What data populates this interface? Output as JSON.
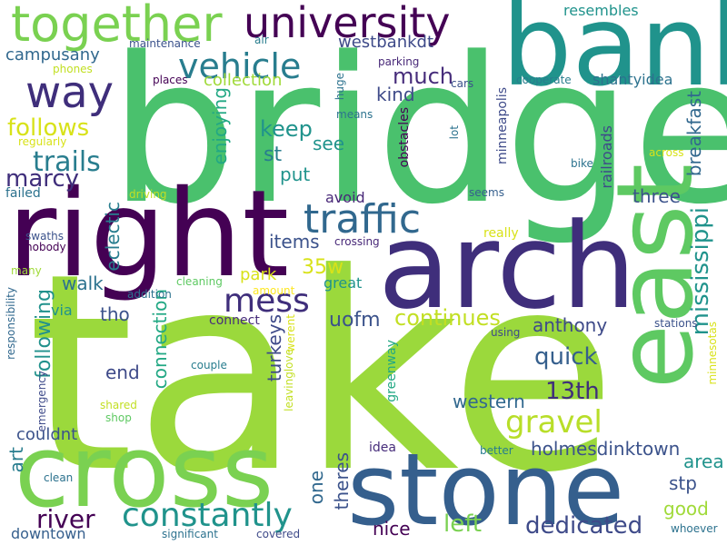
{
  "words": [
    {
      "text": "take"
    },
    {
      "text": "bridge"
    },
    {
      "text": "right"
    },
    {
      "text": "arch"
    },
    {
      "text": "bank"
    },
    {
      "text": "east"
    },
    {
      "text": "cross"
    },
    {
      "text": "stone"
    },
    {
      "text": "together"
    },
    {
      "text": "university"
    },
    {
      "text": "traffic"
    },
    {
      "text": "way"
    },
    {
      "text": "vehicle"
    },
    {
      "text": "mess"
    },
    {
      "text": "gravel"
    },
    {
      "text": "constantly"
    },
    {
      "text": "trails"
    },
    {
      "text": "follows"
    },
    {
      "text": "marcy"
    },
    {
      "text": "river"
    },
    {
      "text": "continues"
    },
    {
      "text": "quick"
    },
    {
      "text": "13th"
    },
    {
      "text": "dedicated"
    },
    {
      "text": "left"
    },
    {
      "text": "mississippi"
    },
    {
      "text": "much"
    },
    {
      "text": "campusany"
    },
    {
      "text": "westbankdt"
    },
    {
      "text": "collection"
    },
    {
      "text": "keep"
    },
    {
      "text": "anthony"
    },
    {
      "text": "holmesdinktown"
    },
    {
      "text": "uofm"
    },
    {
      "text": "35w"
    },
    {
      "text": "following"
    },
    {
      "text": "walk"
    },
    {
      "text": "western"
    },
    {
      "text": "connection"
    },
    {
      "text": "turkeys"
    },
    {
      "text": "items"
    },
    {
      "text": "enjoying"
    },
    {
      "text": "eclectic"
    },
    {
      "text": "see"
    },
    {
      "text": "st"
    },
    {
      "text": "put"
    },
    {
      "text": "kind"
    },
    {
      "text": "three"
    },
    {
      "text": "breakfast"
    },
    {
      "text": "railroads"
    },
    {
      "text": "avoid"
    },
    {
      "text": "park"
    },
    {
      "text": "tho"
    },
    {
      "text": "end"
    },
    {
      "text": "area"
    },
    {
      "text": "stp"
    },
    {
      "text": "good"
    },
    {
      "text": "one"
    },
    {
      "text": "theres"
    },
    {
      "text": "nice"
    },
    {
      "text": "art"
    },
    {
      "text": "couldnt"
    },
    {
      "text": "downtown"
    },
    {
      "text": "idea"
    },
    {
      "text": "great"
    },
    {
      "text": "connect"
    },
    {
      "text": "resembles"
    },
    {
      "text": "shantyidea"
    },
    {
      "text": "obstacles"
    },
    {
      "text": "minneapolis"
    },
    {
      "text": "via"
    },
    {
      "text": "greenway"
    },
    {
      "text": "failed"
    },
    {
      "text": "really"
    },
    {
      "text": "maintenance"
    },
    {
      "text": "air"
    },
    {
      "text": "phones"
    },
    {
      "text": "places"
    },
    {
      "text": "huge"
    },
    {
      "text": "parking"
    },
    {
      "text": "cars"
    },
    {
      "text": "cooperate"
    },
    {
      "text": "means"
    },
    {
      "text": "regularly"
    },
    {
      "text": "lot"
    },
    {
      "text": "across"
    },
    {
      "text": "bike"
    },
    {
      "text": "seems"
    },
    {
      "text": "driving"
    },
    {
      "text": "swaths"
    },
    {
      "text": "nobody"
    },
    {
      "text": "crossing"
    },
    {
      "text": "many"
    },
    {
      "text": "cleaning"
    },
    {
      "text": "amount"
    },
    {
      "text": "addition"
    },
    {
      "text": "responsibility"
    },
    {
      "text": "emergency"
    },
    {
      "text": "leavinglove"
    },
    {
      "text": "werent"
    },
    {
      "text": "couple"
    },
    {
      "text": "shared"
    },
    {
      "text": "shop"
    },
    {
      "text": "using"
    },
    {
      "text": "stations"
    },
    {
      "text": "minnesotas"
    },
    {
      "text": "clean"
    },
    {
      "text": "better"
    },
    {
      "text": "significant"
    },
    {
      "text": "covered"
    },
    {
      "text": "whoever"
    }
  ]
}
